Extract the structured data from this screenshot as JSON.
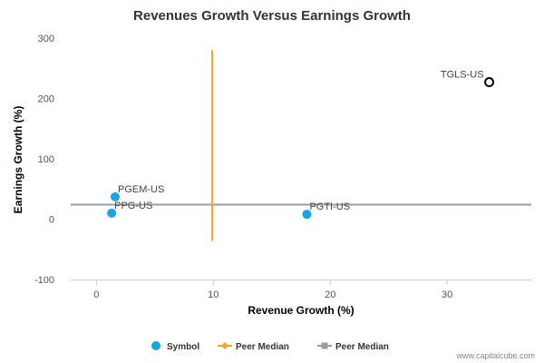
{
  "chart_data": {
    "type": "scatter",
    "title": "Revenues Growth Versus Earnings Growth",
    "xlabel": "Revenue Growth (%)",
    "ylabel": "Earnings Growth (%)",
    "xlim": [
      -2.2,
      37.2
    ],
    "ylim": [
      -100,
      300
    ],
    "x_ticks": [
      0,
      10,
      20,
      30
    ],
    "y_ticks": [
      -100,
      0,
      100,
      200,
      300
    ],
    "grid": false,
    "legend_position": "bottom",
    "points": [
      {
        "label": "PGEM-US",
        "x": 1.6,
        "y": 37,
        "style": "filled",
        "color": "#1aa3e8"
      },
      {
        "label": "PPG-US",
        "x": 1.3,
        "y": 10,
        "style": "filled",
        "color": "#1aa3e8"
      },
      {
        "label": "PGTI-US",
        "x": 18.0,
        "y": 8,
        "style": "filled",
        "color": "#1aa3e8"
      },
      {
        "label": "TGLS-US",
        "x": 33.6,
        "y": 227,
        "style": "hollow",
        "color": "#000000"
      }
    ],
    "peer_median_revenue": {
      "x": 9.9,
      "y_from": -36,
      "y_to": 280,
      "color": "#f5a623"
    },
    "peer_median_earnings": {
      "y": 24,
      "x_from": -2.2,
      "x_to": 37.2,
      "color": "#9a9ca8"
    },
    "legend": [
      {
        "label": "Symbol",
        "kind": "dot",
        "color": "#1aa3e8"
      },
      {
        "label": "Peer Median",
        "kind": "line-diamond",
        "color": "#f5a623"
      },
      {
        "label": "Peer Median",
        "kind": "line-square",
        "color": "#9a9ca8"
      }
    ]
  },
  "credit": "www.capitalcube.com"
}
